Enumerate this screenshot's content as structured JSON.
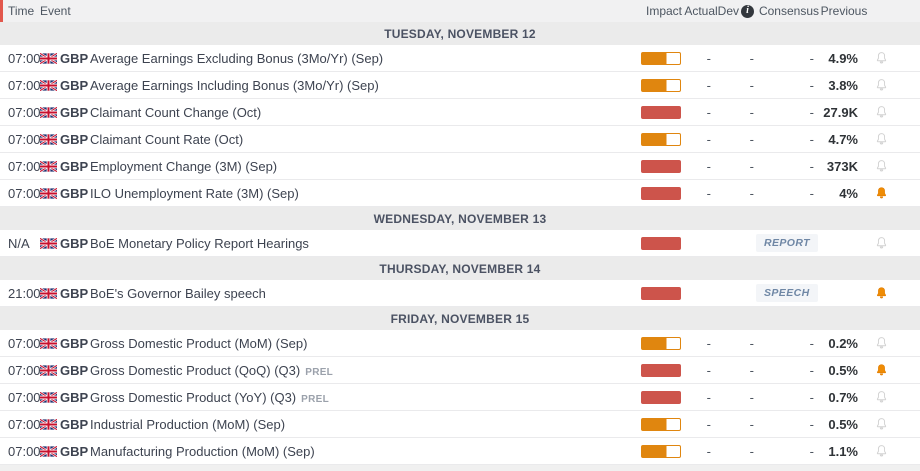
{
  "table": {
    "columns": {
      "time": "Time",
      "event": "Event",
      "impact": "Impact",
      "actual": "Actual",
      "dev": "Dev",
      "consensus": "Consensus",
      "previous": "Previous"
    },
    "info_icon_glyph": "i"
  },
  "icons": {
    "flag": "gbp-flag-icon",
    "alert": "alert-bell-icon",
    "info": "info-icon"
  },
  "colors": {
    "impact_medium": "#e0860f",
    "impact_high": "#cd544b",
    "alert_active": "#ef8c05",
    "alert_inactive": "#d2d2d2",
    "badge_text": "#6f87a5",
    "date_row_bg": "#ebebeb",
    "header_bg": "#f1f1f2"
  },
  "days": [
    {
      "label": "TUESDAY, NOVEMBER 12",
      "events": [
        {
          "time": "07:00",
          "currency": "GBP",
          "name": "Average Earnings Excluding Bonus (3Mo/Yr) (Sep)",
          "tag": "",
          "impact": "medium",
          "actual": "-",
          "dev": "-",
          "consensus": "-",
          "previous": "4.9%",
          "badge": "",
          "alert": false
        },
        {
          "time": "07:00",
          "currency": "GBP",
          "name": "Average Earnings Including Bonus (3Mo/Yr) (Sep)",
          "tag": "",
          "impact": "medium",
          "actual": "-",
          "dev": "-",
          "consensus": "-",
          "previous": "3.8%",
          "badge": "",
          "alert": false
        },
        {
          "time": "07:00",
          "currency": "GBP",
          "name": "Claimant Count Change (Oct)",
          "tag": "",
          "impact": "high",
          "actual": "-",
          "dev": "-",
          "consensus": "-",
          "previous": "27.9K",
          "badge": "",
          "alert": false
        },
        {
          "time": "07:00",
          "currency": "GBP",
          "name": "Claimant Count Rate (Oct)",
          "tag": "",
          "impact": "medium",
          "actual": "-",
          "dev": "-",
          "consensus": "-",
          "previous": "4.7%",
          "badge": "",
          "alert": false
        },
        {
          "time": "07:00",
          "currency": "GBP",
          "name": "Employment Change (3M) (Sep)",
          "tag": "",
          "impact": "high",
          "actual": "-",
          "dev": "-",
          "consensus": "-",
          "previous": "373K",
          "badge": "",
          "alert": false
        },
        {
          "time": "07:00",
          "currency": "GBP",
          "name": "ILO Unemployment Rate (3M) (Sep)",
          "tag": "",
          "impact": "high",
          "actual": "-",
          "dev": "-",
          "consensus": "-",
          "previous": "4%",
          "badge": "",
          "alert": true
        }
      ]
    },
    {
      "label": "WEDNESDAY, NOVEMBER 13",
      "events": [
        {
          "time": "N/A",
          "currency": "GBP",
          "name": "BoE Monetary Policy Report Hearings",
          "tag": "",
          "impact": "high",
          "actual": "",
          "dev": "",
          "consensus": "",
          "previous": "",
          "badge": "REPORT",
          "alert": false
        }
      ]
    },
    {
      "label": "THURSDAY, NOVEMBER 14",
      "events": [
        {
          "time": "21:00",
          "currency": "GBP",
          "name": "BoE's Governor Bailey speech",
          "tag": "",
          "impact": "high",
          "actual": "",
          "dev": "",
          "consensus": "",
          "previous": "",
          "badge": "SPEECH",
          "alert": true
        }
      ]
    },
    {
      "label": "FRIDAY, NOVEMBER 15",
      "events": [
        {
          "time": "07:00",
          "currency": "GBP",
          "name": "Gross Domestic Product (MoM) (Sep)",
          "tag": "",
          "impact": "medium",
          "actual": "-",
          "dev": "-",
          "consensus": "-",
          "previous": "0.2%",
          "badge": "",
          "alert": false
        },
        {
          "time": "07:00",
          "currency": "GBP",
          "name": "Gross Domestic Product (QoQ) (Q3)",
          "tag": "PREL",
          "impact": "high",
          "actual": "-",
          "dev": "-",
          "consensus": "-",
          "previous": "0.5%",
          "badge": "",
          "alert": true
        },
        {
          "time": "07:00",
          "currency": "GBP",
          "name": "Gross Domestic Product (YoY) (Q3)",
          "tag": "PREL",
          "impact": "high",
          "actual": "-",
          "dev": "-",
          "consensus": "-",
          "previous": "0.7%",
          "badge": "",
          "alert": false
        },
        {
          "time": "07:00",
          "currency": "GBP",
          "name": "Industrial Production (MoM) (Sep)",
          "tag": "",
          "impact": "medium",
          "actual": "-",
          "dev": "-",
          "consensus": "-",
          "previous": "0.5%",
          "badge": "",
          "alert": false
        },
        {
          "time": "07:00",
          "currency": "GBP",
          "name": "Manufacturing Production (MoM) (Sep)",
          "tag": "",
          "impact": "medium",
          "actual": "-",
          "dev": "-",
          "consensus": "-",
          "previous": "1.1%",
          "badge": "",
          "alert": false
        }
      ]
    }
  ]
}
